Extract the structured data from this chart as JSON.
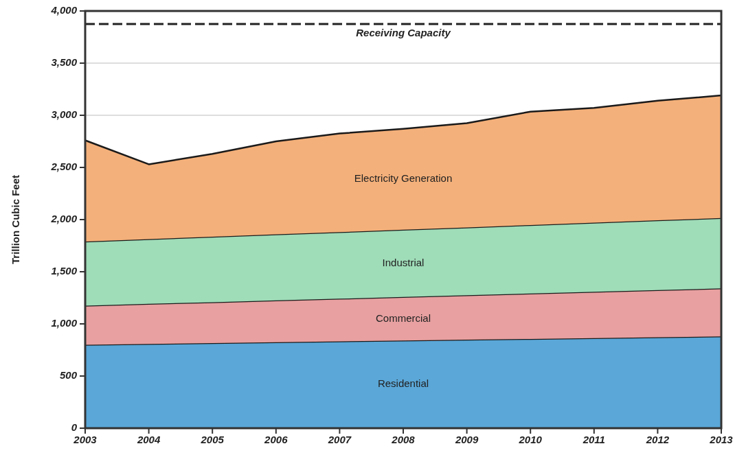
{
  "chart_data": {
    "type": "area",
    "stacked": true,
    "ylabel": "Trillion Cubic Feet",
    "x": [
      2003,
      2004,
      2005,
      2006,
      2007,
      2008,
      2009,
      2010,
      2011,
      2012,
      2013
    ],
    "xlim": [
      2003,
      2013
    ],
    "xticks": [
      2003,
      2004,
      2005,
      2006,
      2007,
      2008,
      2009,
      2010,
      2011,
      2012,
      2013
    ],
    "ylim": [
      0,
      4000
    ],
    "yticks": [
      {
        "value": 0,
        "label": "0"
      },
      {
        "value": 500,
        "label": "500"
      },
      {
        "value": 1000,
        "label": "1,000"
      },
      {
        "value": 1500,
        "label": "1,500"
      },
      {
        "value": 2000,
        "label": "2,000"
      },
      {
        "value": 2500,
        "label": "2,500"
      },
      {
        "value": 3000,
        "label": "3,000"
      },
      {
        "value": 3500,
        "label": "3,500"
      },
      {
        "value": 4000,
        "label": "4,000"
      }
    ],
    "grid": "y",
    "series": [
      {
        "name": "Residential",
        "color": "#5aa7d8",
        "values": [
          800,
          808,
          816,
          824,
          832,
          840,
          848,
          856,
          864,
          872,
          880
        ]
      },
      {
        "name": "Commercial",
        "color": "#e8a0a0",
        "values": [
          375,
          384,
          392,
          401,
          409,
          418,
          426,
          435,
          443,
          452,
          460
        ]
      },
      {
        "name": "Industrial",
        "color": "#9fdcb8",
        "values": [
          615,
          621,
          627,
          633,
          639,
          645,
          651,
          657,
          663,
          669,
          675
        ]
      },
      {
        "name": "Electricity Generation",
        "color": "#f4b07a",
        "values": [
          970,
          717,
          795,
          892,
          945,
          967,
          1000,
          1087,
          1100,
          1147,
          1175
        ]
      }
    ],
    "ref_lines": [
      {
        "axis": "y",
        "value": 3875,
        "label": "Receiving Capacity",
        "color": "#222222",
        "line_style": "dashed"
      }
    ]
  }
}
